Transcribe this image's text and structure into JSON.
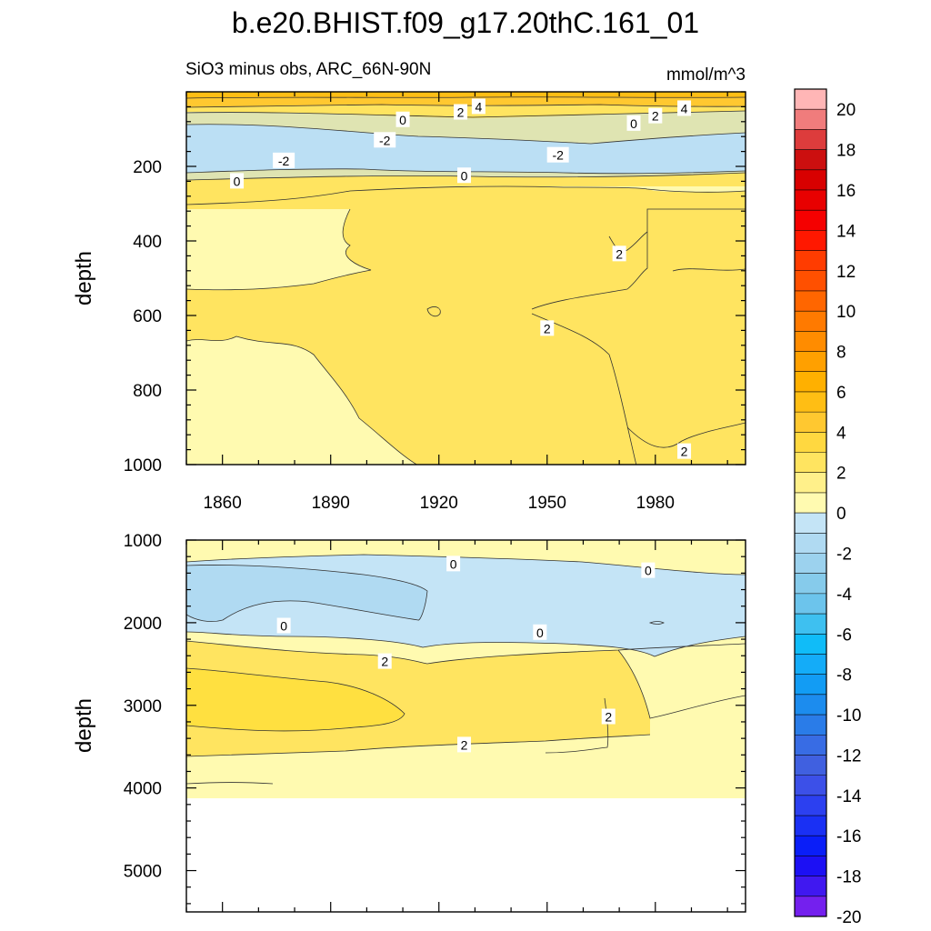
{
  "title": "b.e20.BHIST.f09_g17.20thC.161_01",
  "subtitle": "SiO3 minus obs, ARC_66N-90N",
  "units": "mmol/m^3",
  "chart_data": {
    "type": "contour",
    "title": "b.e20.BHIST.f09_g17.20thC.161_01",
    "subtitle": "SiO3 minus obs, ARC_66N-90N",
    "units": "mmol/m^3",
    "x_ticks": [
      1860,
      1890,
      1920,
      1950,
      1980
    ],
    "xlim": [
      1850,
      2005
    ],
    "panels": [
      {
        "name": "upper",
        "ylabel": "depth",
        "ylim": [
          0,
          1000
        ],
        "y_ticks": [
          200,
          400,
          600,
          800,
          1000
        ],
        "contour_labels": [
          {
            "text": "4",
            "x": 1931,
            "depth": 40
          },
          {
            "text": "4",
            "x": 1988,
            "depth": 45
          },
          {
            "text": "2",
            "x": 1926,
            "depth": 55
          },
          {
            "text": "2",
            "x": 1980,
            "depth": 65
          },
          {
            "text": "0",
            "x": 1910,
            "depth": 75
          },
          {
            "text": "0",
            "x": 1974,
            "depth": 85
          },
          {
            "text": "-2",
            "x": 1905,
            "depth": 130
          },
          {
            "text": "-2",
            "x": 1953,
            "depth": 170
          },
          {
            "text": "-2",
            "x": 1877,
            "depth": 185
          },
          {
            "text": "0",
            "x": 1927,
            "depth": 225
          },
          {
            "text": "0",
            "x": 1864,
            "depth": 240
          },
          {
            "text": "2",
            "x": 1970,
            "depth": 435
          },
          {
            "text": "2",
            "x": 1950,
            "depth": 635
          },
          {
            "text": "2",
            "x": 1988,
            "depth": 965
          }
        ]
      },
      {
        "name": "lower",
        "ylabel": "depth",
        "ylim": [
          1000,
          5500
        ],
        "y_ticks": [
          1000,
          2000,
          3000,
          4000,
          5000
        ],
        "data_bottom_depth": 4125,
        "contour_labels": [
          {
            "text": "0",
            "x": 1924,
            "depth": 1290
          },
          {
            "text": "0",
            "x": 1978,
            "depth": 1370
          },
          {
            "text": "0",
            "x": 1877,
            "depth": 2040
          },
          {
            "text": "0",
            "x": 1948,
            "depth": 2120
          },
          {
            "text": "2",
            "x": 1905,
            "depth": 2470
          },
          {
            "text": "2",
            "x": 1967,
            "depth": 3140
          },
          {
            "text": "2",
            "x": 1927,
            "depth": 3480
          }
        ]
      }
    ],
    "colorbar": {
      "labels": [
        "20",
        "18",
        "16",
        "14",
        "12",
        "10",
        "8",
        "6",
        "4",
        "2",
        "0",
        "-2",
        "-4",
        "-6",
        "-8",
        "-10",
        "-12",
        "-14",
        "-16",
        "-18",
        "-20"
      ],
      "colors": [
        "#ffb6b6",
        "#f07c7c",
        "#dd3c3c",
        "#cc0f0f",
        "#d80000",
        "#e80000",
        "#f50000",
        "#ff1800",
        "#ff3c00",
        "#ff5000",
        "#ff6600",
        "#ff7a00",
        "#ff8c00",
        "#ffa000",
        "#ffb000",
        "#ffbe14",
        "#ffc830",
        "#ffd840",
        "#ffe460",
        "#fff08a",
        "#fffab0",
        "#c4e4f6",
        "#b0daf2",
        "#9cd2ee",
        "#86cbeb",
        "#6cc4ec",
        "#3ec0f0",
        "#10bcf8",
        "#14acf8",
        "#129cf4",
        "#1c8cee",
        "#2a7ce8",
        "#386ce4",
        "#4060e0",
        "#3c50e8",
        "#2c40f0",
        "#1a30f4",
        "#0a1ef8",
        "#1c10f4",
        "#4018f0",
        "#7420ee"
      ]
    }
  }
}
